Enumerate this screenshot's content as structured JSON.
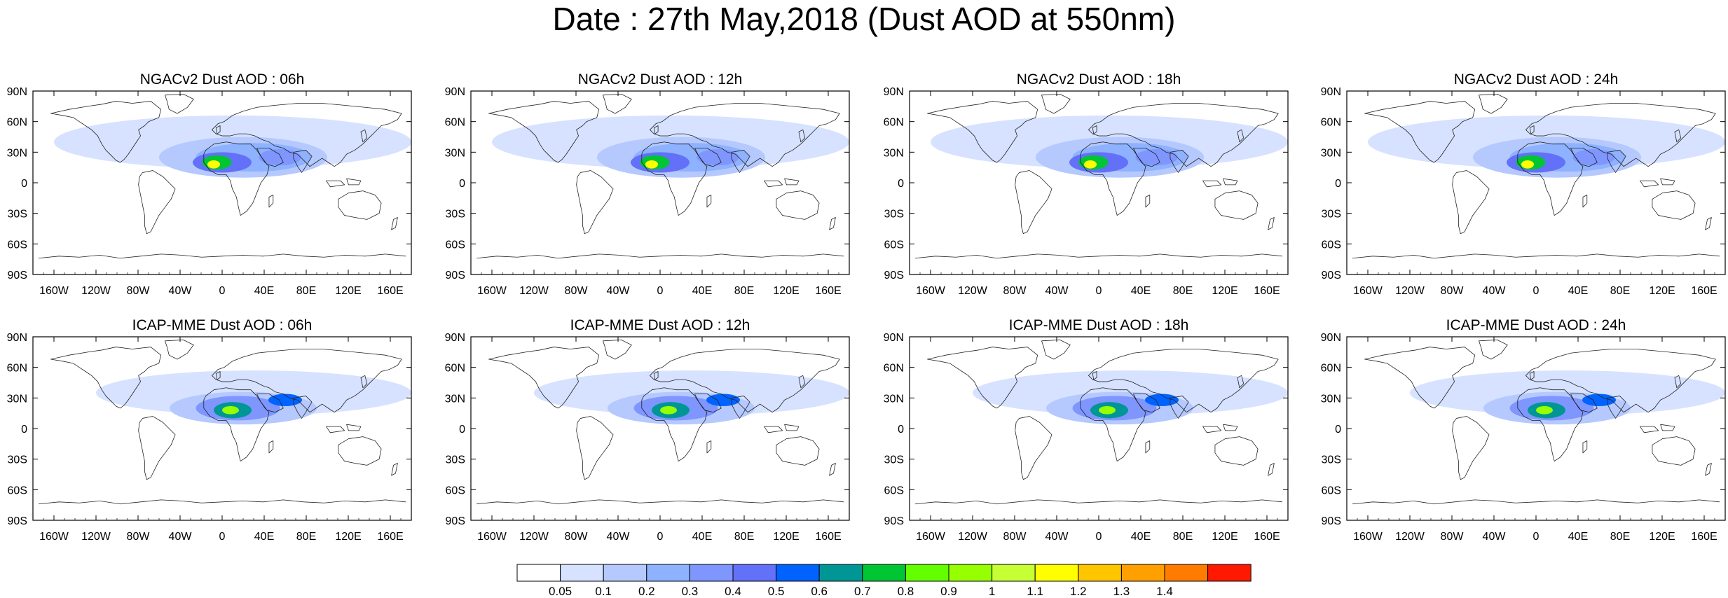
{
  "title": "Date : 27th May,2018 (Dust AOD at 550nm)",
  "lat_ticks": [
    "90N",
    "60N",
    "30N",
    "0",
    "30S",
    "60S",
    "90S"
  ],
  "lon_ticks": [
    "160W",
    "120W",
    "80W",
    "40W",
    "0",
    "40E",
    "80E",
    "120E",
    "160E"
  ],
  "lon_values": [
    -160,
    -120,
    -80,
    -40,
    0,
    40,
    80,
    120,
    160
  ],
  "lat_values": [
    90,
    60,
    30,
    0,
    -30,
    -60,
    -90
  ],
  "panels": [
    {
      "title": "NGACv2 Dust AOD : 06h",
      "model": "NGACv2",
      "hour": "06h"
    },
    {
      "title": "NGACv2 Dust AOD : 12h",
      "model": "NGACv2",
      "hour": "12h"
    },
    {
      "title": "NGACv2 Dust AOD : 18h",
      "model": "NGACv2",
      "hour": "18h"
    },
    {
      "title": "NGACv2 Dust AOD : 24h",
      "model": "NGACv2",
      "hour": "24h"
    },
    {
      "title": "ICAP-MME Dust AOD : 06h",
      "model": "ICAP-MME",
      "hour": "06h"
    },
    {
      "title": "ICAP-MME Dust AOD : 12h",
      "model": "ICAP-MME",
      "hour": "12h"
    },
    {
      "title": "ICAP-MME Dust AOD : 18h",
      "model": "ICAP-MME",
      "hour": "18h"
    },
    {
      "title": "ICAP-MME Dust AOD : 24h",
      "model": "ICAP-MME",
      "hour": "24h"
    }
  ],
  "colorbar": {
    "colors": [
      "#ffffff",
      "#d6e2ff",
      "#b5c9ff",
      "#8eb2ff",
      "#7f96ff",
      "#6370f8",
      "#0063ff",
      "#009696",
      "#00c633",
      "#63ff00",
      "#96ff00",
      "#c6ff33",
      "#ffff00",
      "#ffc600",
      "#ffa000",
      "#ff7c00",
      "#ff1900"
    ],
    "labels": [
      "0.05",
      "0.1",
      "0.2",
      "0.3",
      "0.4",
      "0.5",
      "0.6",
      "0.7",
      "0.8",
      "0.9",
      "1",
      "1.1",
      "1.2",
      "1.3",
      "1.4"
    ]
  }
}
